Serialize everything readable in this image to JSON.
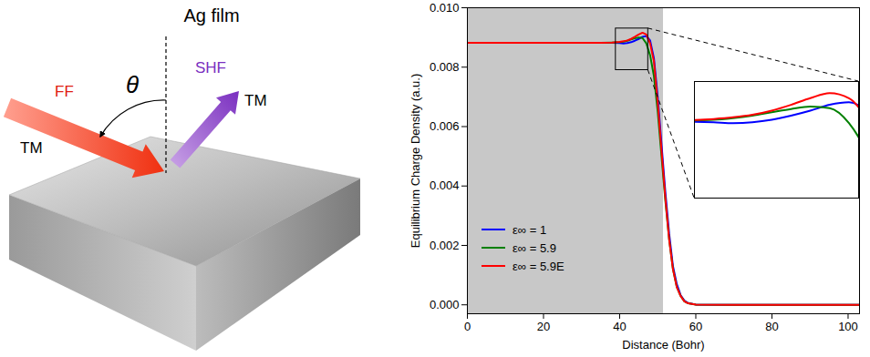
{
  "diagram": {
    "title": "Ag film",
    "incident": {
      "label": "FF",
      "polarization": "TM"
    },
    "angle": "θ",
    "reflected": {
      "label": "SHF",
      "polarization": "TM"
    }
  },
  "chart_data": {
    "type": "line",
    "xlabel": "Distance (Bohr)",
    "ylabel": "Equilibrium Charge Density (a.u.)",
    "x": [
      0,
      10,
      20,
      30,
      35,
      38,
      40,
      41,
      42,
      43,
      44,
      45,
      46,
      47,
      48,
      49,
      50,
      51,
      52,
      53,
      54,
      55,
      56,
      57,
      58,
      60,
      70,
      80,
      90,
      100,
      103
    ],
    "series": [
      {
        "name": "ε∞ = 1",
        "color": "#0000ff",
        "values": [
          0.00882,
          0.00882,
          0.00882,
          0.00882,
          0.00882,
          0.00882,
          0.00881,
          0.0088,
          0.00881,
          0.00884,
          0.00889,
          0.00895,
          0.00902,
          0.00905,
          0.0089,
          0.0083,
          0.007,
          0.0054,
          0.0038,
          0.0024,
          0.0013,
          0.0007,
          0.00033,
          0.00014,
          6e-05,
          1e-05,
          0,
          0,
          0,
          0,
          0
        ]
      },
      {
        "name": "ε∞ = 5.9",
        "color": "#008000",
        "values": [
          0.00882,
          0.00882,
          0.00882,
          0.00882,
          0.00882,
          0.00883,
          0.00884,
          0.00886,
          0.00889,
          0.00893,
          0.00897,
          0.009,
          0.00898,
          0.0088,
          0.0084,
          0.0077,
          0.0065,
          0.005,
          0.0035,
          0.0022,
          0.0012,
          0.0006,
          0.0003,
          0.00012,
          5e-05,
          1e-05,
          0,
          0,
          0,
          0,
          0
        ]
      },
      {
        "name": "ε∞ = 5.9E",
        "color": "#ff0000",
        "values": [
          0.00882,
          0.00882,
          0.00882,
          0.00882,
          0.00882,
          0.00883,
          0.00885,
          0.00887,
          0.0089,
          0.00895,
          0.00902,
          0.0091,
          0.00916,
          0.0091,
          0.0088,
          0.0082,
          0.0068,
          0.0052,
          0.0036,
          0.0022,
          0.0012,
          0.0006,
          0.0003,
          0.00012,
          5e-05,
          1e-05,
          0,
          0,
          0,
          0,
          0
        ]
      }
    ],
    "xlim": [
      0,
      103
    ],
    "xticks": [
      0,
      20,
      40,
      60,
      80,
      100
    ],
    "ylim": [
      -0.0003,
      0.01
    ],
    "yticks": [
      {
        "value": 0,
        "label": "0.000"
      },
      {
        "value": 0.002,
        "label": "0.002"
      },
      {
        "value": 0.004,
        "label": "0.004"
      },
      {
        "value": 0.006,
        "label": "0.006"
      },
      {
        "value": 0.008,
        "label": "0.008"
      },
      {
        "value": 0.01,
        "label": "0.010"
      }
    ],
    "legend": "lower left",
    "shaded_region": [
      0,
      51.5
    ],
    "inset": {
      "xlim": [
        39,
        47.5
      ],
      "ylim": [
        0.0079,
        0.0093
      ]
    }
  }
}
